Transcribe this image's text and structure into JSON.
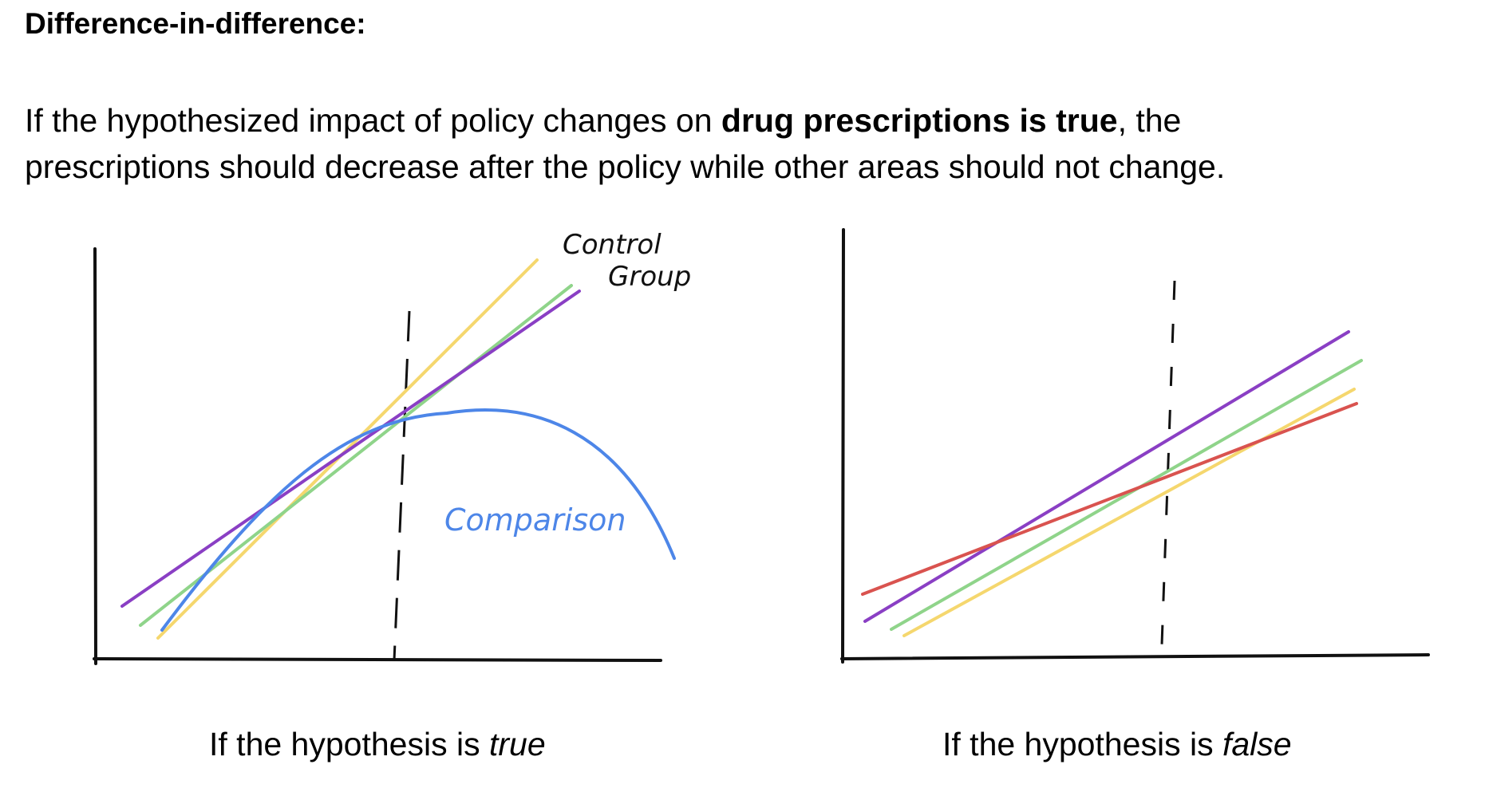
{
  "heading": "Difference-in-difference:",
  "paragraph": {
    "line1_before": "If the hypothesized impact of policy changes on ",
    "line1_bold": "drug prescriptions is true",
    "line1_after": ", the",
    "line2": "prescriptions should decrease after the policy while other areas should not change."
  },
  "diagrams": {
    "left": {
      "label_control_line1": "Control",
      "label_control_line2": "Group",
      "label_comparison": "Comparison",
      "caption_prefix": "If the hypothesis is ",
      "caption_emphasis": "true"
    },
    "right": {
      "caption_prefix": "If the hypothesis is ",
      "caption_emphasis": "false"
    }
  },
  "colors": {
    "yellow": "#f5d76e",
    "green": "#8fd48a",
    "purple": "#8a3fc4",
    "blue": "#4d86e8",
    "red": "#d9534f",
    "axis": "#111111"
  }
}
